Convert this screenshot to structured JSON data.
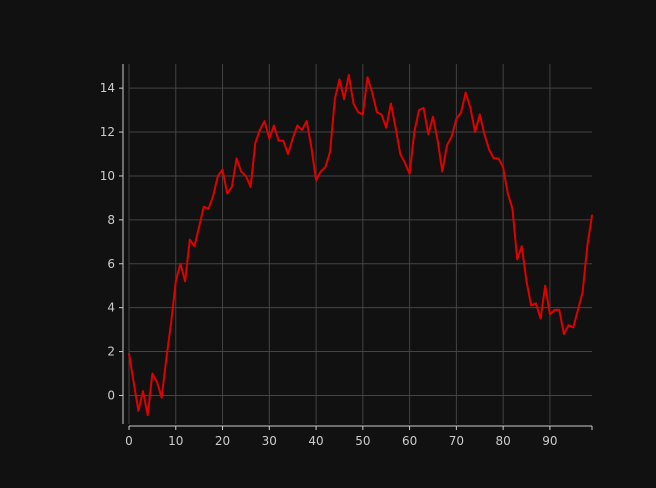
{
  "chart_data": {
    "type": "line",
    "title": "",
    "xlabel": "",
    "ylabel": "",
    "xlim": [
      0,
      99
    ],
    "ylim": [
      -1.3,
      15.1
    ],
    "x_ticks": [
      0,
      10,
      20,
      30,
      40,
      50,
      60,
      70,
      80,
      90
    ],
    "y_ticks": [
      0,
      2,
      4,
      6,
      8,
      10,
      12,
      14
    ],
    "grid": true,
    "legend": "none",
    "line_color": "#e00000",
    "background": "#111111",
    "series": [
      {
        "x": [
          0,
          1,
          2,
          3,
          4,
          5,
          6,
          7,
          8,
          9,
          10,
          11,
          12,
          13,
          14,
          15,
          16,
          17,
          18,
          19,
          20,
          21,
          22,
          23,
          24,
          25,
          26,
          27,
          28,
          29,
          30,
          31,
          32,
          33,
          34,
          35,
          36,
          37,
          38,
          39,
          40,
          41,
          42,
          43,
          44,
          45,
          46,
          47,
          48,
          49,
          50,
          51,
          52,
          53,
          54,
          55,
          56,
          57,
          58,
          59,
          60,
          61,
          62,
          63,
          64,
          65,
          66,
          67,
          68,
          69,
          70,
          71,
          72,
          73,
          74,
          75,
          76,
          77,
          78,
          79,
          80,
          81,
          82,
          83,
          84,
          85,
          86,
          87,
          88,
          89,
          90,
          91,
          92,
          93,
          94,
          95,
          96,
          97,
          98,
          99
        ],
        "y": [
          1.9,
          0.6,
          -0.7,
          0.2,
          -0.9,
          1.0,
          0.6,
          -0.1,
          1.7,
          3.3,
          5.2,
          6.0,
          5.2,
          7.1,
          6.8,
          7.7,
          8.6,
          8.5,
          9.1,
          10.0,
          10.3,
          9.2,
          9.5,
          10.8,
          10.2,
          10.0,
          9.5,
          11.5,
          12.1,
          12.5,
          11.7,
          12.3,
          11.6,
          11.6,
          11.0,
          11.7,
          12.3,
          12.1,
          12.5,
          11.3,
          9.8,
          10.2,
          10.4,
          11.1,
          13.5,
          14.4,
          13.5,
          14.6,
          13.3,
          12.9,
          12.8,
          14.5,
          13.8,
          12.9,
          12.8,
          12.2,
          13.3,
          12.2,
          11.0,
          10.6,
          10.1,
          12.0,
          13.0,
          13.1,
          11.9,
          12.7,
          11.6,
          10.2,
          11.4,
          11.8,
          12.6,
          12.9,
          13.8,
          13.1,
          12.0,
          12.8,
          11.9,
          11.2,
          10.8,
          10.8,
          10.4,
          9.2,
          8.5,
          6.2,
          6.8,
          5.2,
          4.1,
          4.2,
          3.5,
          5.0,
          3.7,
          3.9,
          3.9,
          2.8,
          3.2,
          3.1,
          3.9,
          4.7,
          6.8,
          8.2
        ]
      }
    ]
  }
}
